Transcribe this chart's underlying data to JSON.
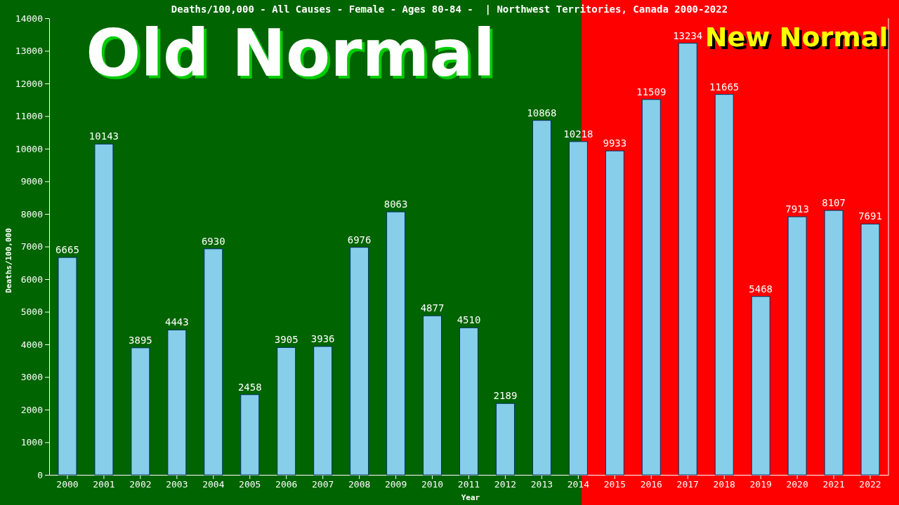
{
  "chart_data": {
    "type": "bar",
    "title": "Deaths/100,000 - All Causes - Female - Ages 80-84 -  | Northwest Territories, Canada 2000-2022",
    "xlabel": "Year",
    "ylabel": "Deaths/100,000",
    "categories": [
      "2000",
      "2001",
      "2002",
      "2003",
      "2004",
      "2005",
      "2006",
      "2007",
      "2008",
      "2009",
      "2010",
      "2011",
      "2012",
      "2013",
      "2014",
      "2015",
      "2016",
      "2017",
      "2018",
      "2019",
      "2020",
      "2021",
      "2022"
    ],
    "values": [
      6665,
      10143,
      3895,
      4443,
      6930,
      2458,
      3905,
      3936,
      6976,
      8063,
      4877,
      4510,
      2189,
      10868,
      10218,
      9933,
      11509,
      13234,
      11665,
      5468,
      7913,
      8107,
      7691
    ],
    "color": "#87ceeb",
    "data_labels": true,
    "ylim": [
      0,
      14000
    ],
    "yticks": [
      0,
      1000,
      2000,
      3000,
      4000,
      5000,
      6000,
      7000,
      8000,
      9000,
      10000,
      11000,
      12000,
      13000,
      14000
    ],
    "bands": [
      {
        "axis": "x",
        "from": "2000",
        "to": "2014",
        "label": "Old Normal",
        "color": "#006400"
      },
      {
        "axis": "x",
        "from": "2014",
        "to": "2022",
        "label": "New Normal",
        "color": "#ff0000"
      }
    ]
  }
}
